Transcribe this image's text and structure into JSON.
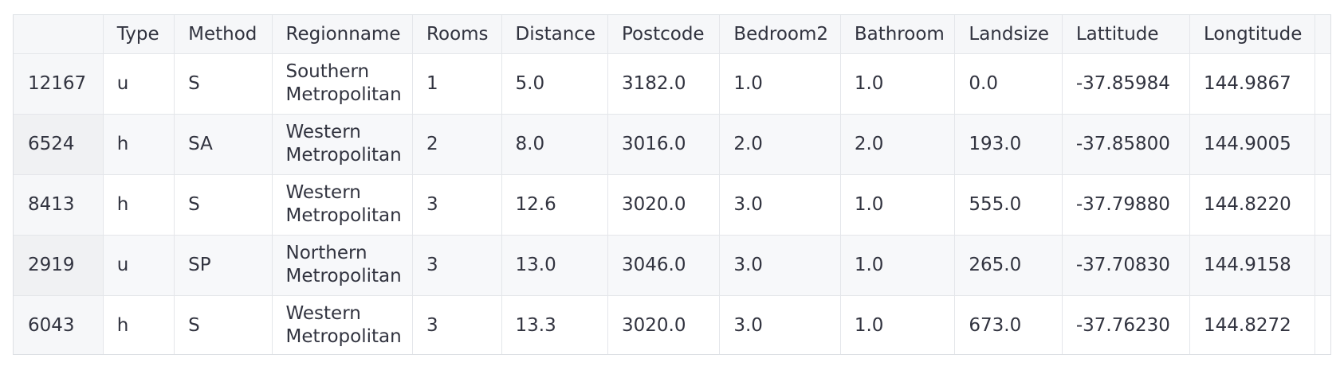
{
  "columns": [
    "",
    "Type",
    "Method",
    "Regionname",
    "Rooms",
    "Distance",
    "Postcode",
    "Bedroom2",
    "Bathroom",
    "Landsize",
    "Lattitude",
    "Longtitude"
  ],
  "rows": [
    [
      "12167",
      "u",
      "S",
      "Southern Metropolitan",
      "1",
      "5.0",
      "3182.0",
      "1.0",
      "1.0",
      "0.0",
      "-37.85984",
      "144.9867"
    ],
    [
      "6524",
      "h",
      "SA",
      "Western Metropolitan",
      "2",
      "8.0",
      "3016.0",
      "2.0",
      "2.0",
      "193.0",
      "-37.85800",
      "144.9005"
    ],
    [
      "8413",
      "h",
      "S",
      "Western Metropolitan",
      "3",
      "12.6",
      "3020.0",
      "3.0",
      "1.0",
      "555.0",
      "-37.79880",
      "144.8220"
    ],
    [
      "2919",
      "u",
      "SP",
      "Northern Metropolitan",
      "3",
      "13.0",
      "3046.0",
      "3.0",
      "1.0",
      "265.0",
      "-37.70830",
      "144.9158"
    ],
    [
      "6043",
      "h",
      "S",
      "Western Metropolitan",
      "3",
      "13.3",
      "3020.0",
      "3.0",
      "1.0",
      "673.0",
      "-37.76230",
      "144.8272"
    ]
  ]
}
